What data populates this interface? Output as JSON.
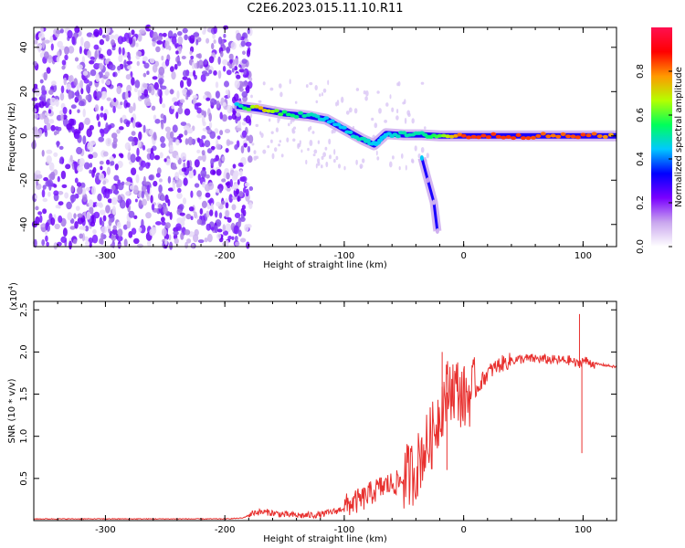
{
  "title": "C2E6.2023.015.11.10.R11",
  "chart_data": [
    {
      "type": "heatmap",
      "xlabel": "Height of straight line (km)",
      "ylabel": "Frequency (Hz)",
      "xlim": [
        -360,
        128
      ],
      "ylim": [
        -50,
        49
      ],
      "xticks": [
        "-300",
        "-200",
        "-100",
        "0",
        "100"
      ],
      "xtick_values": [
        -300,
        -200,
        -100,
        0,
        100
      ],
      "yticks": [
        "-40",
        "-20",
        "0",
        "20",
        "40"
      ],
      "ytick_values": [
        -40,
        -20,
        0,
        20,
        40
      ],
      "colorbar": {
        "label": "Normalized spectral amplitude",
        "range": [
          0,
          1
        ],
        "ticks": [
          "0.0",
          "0.2",
          "0.4",
          "0.6",
          "0.8"
        ],
        "tick_values": [
          0.0,
          0.2,
          0.4,
          0.6,
          0.8
        ],
        "colors": [
          "#ffffff",
          "#c9a6ee",
          "#7a00ff",
          "#0000ff",
          "#00c8ff",
          "#00ff5a",
          "#b4ff00",
          "#ff9900",
          "#ff0000",
          "#ff1050"
        ]
      },
      "noise_region": {
        "x_range": [
          -360,
          -178
        ],
        "f_range": [
          -50,
          49
        ],
        "amplitude_range": [
          0.0,
          0.15
        ]
      },
      "signal_track": [
        {
          "x": -190,
          "f": 13.5,
          "a": 0.45
        },
        {
          "x": -170,
          "f": 12.0,
          "a": 0.75
        },
        {
          "x": -150,
          "f": 10.0,
          "a": 0.55
        },
        {
          "x": -130,
          "f": 9.0,
          "a": 0.5
        },
        {
          "x": -115,
          "f": 7.5,
          "a": 0.45
        },
        {
          "x": -100,
          "f": 3.0,
          "a": 0.45
        },
        {
          "x": -85,
          "f": -1.5,
          "a": 0.5
        },
        {
          "x": -75,
          "f": -4.0,
          "a": 0.45
        },
        {
          "x": -65,
          "f": 1.0,
          "a": 0.45
        },
        {
          "x": -50,
          "f": 0.5,
          "a": 0.5
        },
        {
          "x": -35,
          "f": 0.5,
          "a": 0.5
        },
        {
          "x": -20,
          "f": 0.0,
          "a": 0.6
        },
        {
          "x": 0,
          "f": 0.0,
          "a": 0.85
        },
        {
          "x": 25,
          "f": 0.0,
          "a": 0.85
        },
        {
          "x": 50,
          "f": 0.0,
          "a": 0.85
        },
        {
          "x": 75,
          "f": 0.0,
          "a": 0.8
        },
        {
          "x": 100,
          "f": 0.0,
          "a": 0.85
        },
        {
          "x": 128,
          "f": 0.0,
          "a": 0.75
        }
      ],
      "secondary_track": [
        {
          "x": -35,
          "f": -10,
          "a": 0.45
        },
        {
          "x": -30,
          "f": -20,
          "a": 0.12
        },
        {
          "x": -25,
          "f": -30,
          "a": 0.1
        },
        {
          "x": -22,
          "f": -43,
          "a": 0.1
        }
      ]
    },
    {
      "type": "line",
      "xlabel": "Height of straight line (km)",
      "ylabel": "SNR (10 * v/v)",
      "multiplier_label": "(x10",
      "multiplier_exponent": "4",
      "multiplier_close": ")",
      "xlim": [
        -360,
        128
      ],
      "ylim": [
        0,
        2.6
      ],
      "xticks": [
        "-300",
        "-200",
        "-100",
        "0",
        "100"
      ],
      "xtick_values": [
        -300,
        -200,
        -100,
        0,
        100
      ],
      "yticks": [
        "0.5",
        "1.0",
        "1.5",
        "2.0",
        "2.5"
      ],
      "ytick_values": [
        0.5,
        1.0,
        1.5,
        2.0,
        2.5
      ],
      "color": "#e8312f",
      "series": [
        {
          "x": [
            -360,
            -300,
            -250,
            -200,
            -185,
            -175,
            -165,
            -150,
            -135,
            -120,
            -105,
            -95,
            -85,
            -75,
            -65,
            -55,
            -50,
            -45,
            -40,
            -35,
            -30,
            -25,
            -20,
            -15,
            -10,
            -5,
            0,
            5,
            10,
            20,
            30,
            40,
            50,
            60,
            70,
            80,
            90,
            95,
            100,
            110,
            120,
            128
          ],
          "y": [
            0.02,
            0.02,
            0.02,
            0.02,
            0.03,
            0.1,
            0.1,
            0.07,
            0.06,
            0.07,
            0.12,
            0.2,
            0.25,
            0.35,
            0.42,
            0.45,
            0.5,
            0.55,
            0.6,
            0.8,
            0.9,
            1.05,
            1.3,
            1.5,
            1.6,
            1.55,
            1.45,
            1.5,
            1.55,
            1.75,
            1.85,
            1.9,
            1.92,
            1.92,
            1.91,
            1.9,
            1.9,
            1.85,
            1.9,
            1.86,
            1.84,
            1.82
          ]
        }
      ],
      "spikes": [
        {
          "x": -18,
          "y": 2.0
        },
        {
          "x": -14,
          "y": 0.6
        },
        {
          "x": 97,
          "y": 2.45
        },
        {
          "x": 99,
          "y": 0.8
        }
      ]
    }
  ]
}
